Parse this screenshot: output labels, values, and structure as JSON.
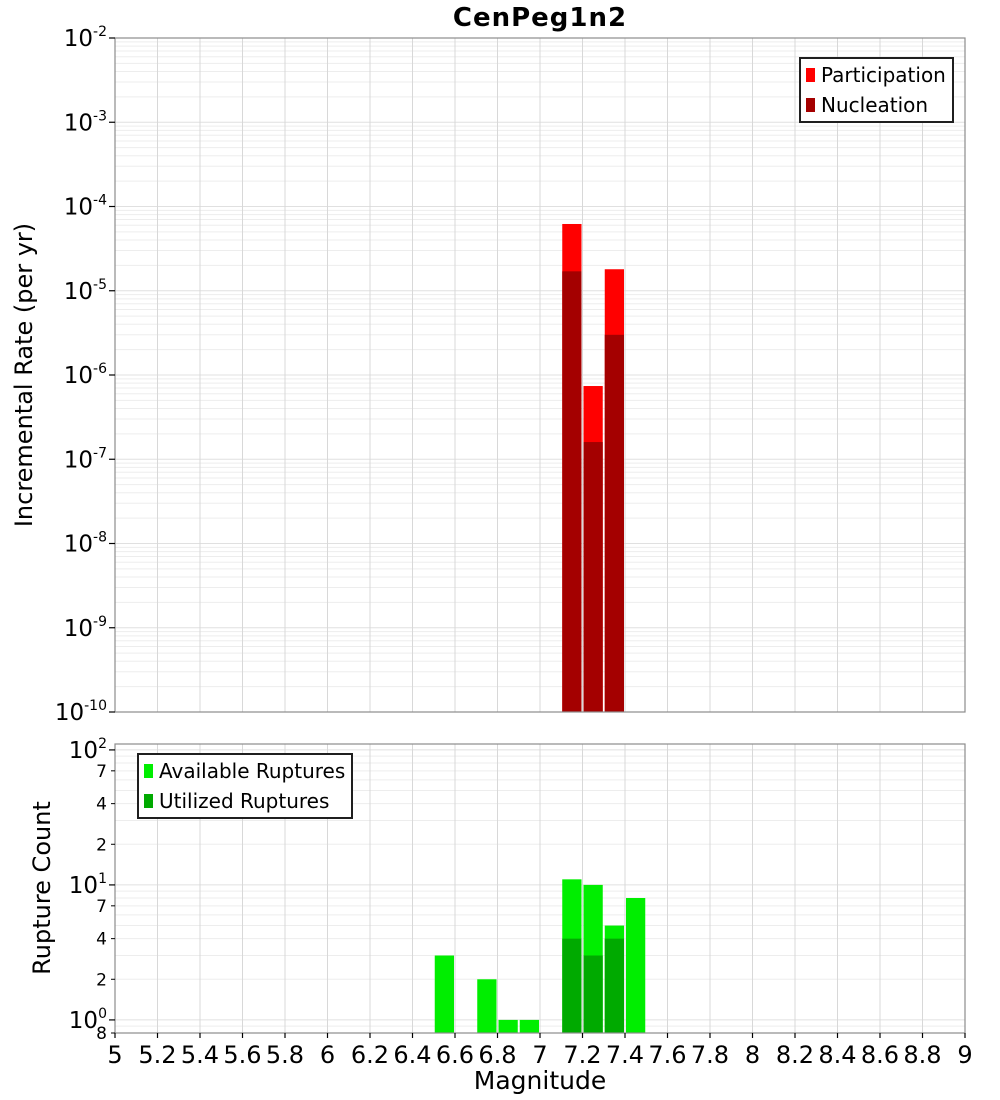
{
  "title": "CenPeg1n2",
  "axes": {
    "x_tick_labels": [
      "5",
      "5.2",
      "5.4",
      "5.6",
      "5.8",
      "6",
      "6.2",
      "6.4",
      "6.6",
      "6.8",
      "7",
      "7.2",
      "7.4",
      "7.6",
      "7.8",
      "8",
      "8.2",
      "8.4",
      "8.6",
      "8.8",
      "9"
    ],
    "rate_y_tick_exponents": [
      "-2",
      "-3",
      "-4",
      "-5",
      "-6",
      "-7",
      "-8",
      "-9",
      "-10"
    ],
    "count_y_major_ticks": [
      {
        "exp": "2",
        "value": 100
      },
      {
        "exp": "1",
        "value": 10
      },
      {
        "exp": "0",
        "value": 1
      }
    ],
    "count_y_minor_ticks": [
      {
        "label": "7",
        "value": 70
      },
      {
        "label": "4",
        "value": 40
      },
      {
        "label": "2",
        "value": 20
      },
      {
        "label": "7",
        "value": 7
      },
      {
        "label": "4",
        "value": 4
      },
      {
        "label": "2",
        "value": 2
      },
      {
        "label": "8",
        "value": 0.8
      }
    ]
  },
  "chart_data": [
    {
      "id": "incremental-rate",
      "type": "bar",
      "title": "CenPeg1n2",
      "xlabel": "Magnitude",
      "ylabel": "Incremental Rate (per yr)",
      "xscale": "linear",
      "yscale": "log",
      "xlim": [
        5,
        9
      ],
      "ylim": [
        1e-10,
        0.01
      ],
      "grid": true,
      "bin_width": 0.1,
      "x": [
        7.15,
        7.25,
        7.35
      ],
      "series": [
        {
          "name": "Participation",
          "color": "#ff0000",
          "values": [
            6.2e-05,
            7.4e-07,
            1.8e-05
          ]
        },
        {
          "name": "Nucleation",
          "color": "#a40000",
          "values": [
            1.7e-05,
            1.6e-07,
            3e-06
          ]
        }
      ],
      "legend": {
        "position": "top-right",
        "entries": [
          {
            "label": "Participation",
            "color": "#ff0000"
          },
          {
            "label": "Nucleation",
            "color": "#a40000"
          }
        ]
      }
    },
    {
      "id": "rupture-count",
      "type": "bar",
      "title": "",
      "xlabel": "Magnitude",
      "ylabel": "Rupture Count",
      "xscale": "linear",
      "yscale": "log",
      "xlim": [
        5,
        9
      ],
      "ylim": [
        0.8,
        110
      ],
      "grid": true,
      "bin_width": 0.1,
      "x": [
        6.55,
        6.75,
        6.85,
        6.95,
        7.15,
        7.25,
        7.35,
        7.45
      ],
      "series": [
        {
          "name": "Available Ruptures",
          "color": "#00ee00",
          "values": [
            3,
            2,
            1,
            1,
            11,
            10,
            5,
            8
          ]
        },
        {
          "name": "Utilized Ruptures",
          "color": "#00aa00",
          "values": [
            null,
            null,
            null,
            null,
            4,
            3,
            4,
            null
          ]
        }
      ],
      "legend": {
        "position": "top-left",
        "entries": [
          {
            "label": "Available Ruptures",
            "color": "#00ee00"
          },
          {
            "label": "Utilized Ruptures",
            "color": "#00aa00"
          }
        ]
      }
    }
  ]
}
